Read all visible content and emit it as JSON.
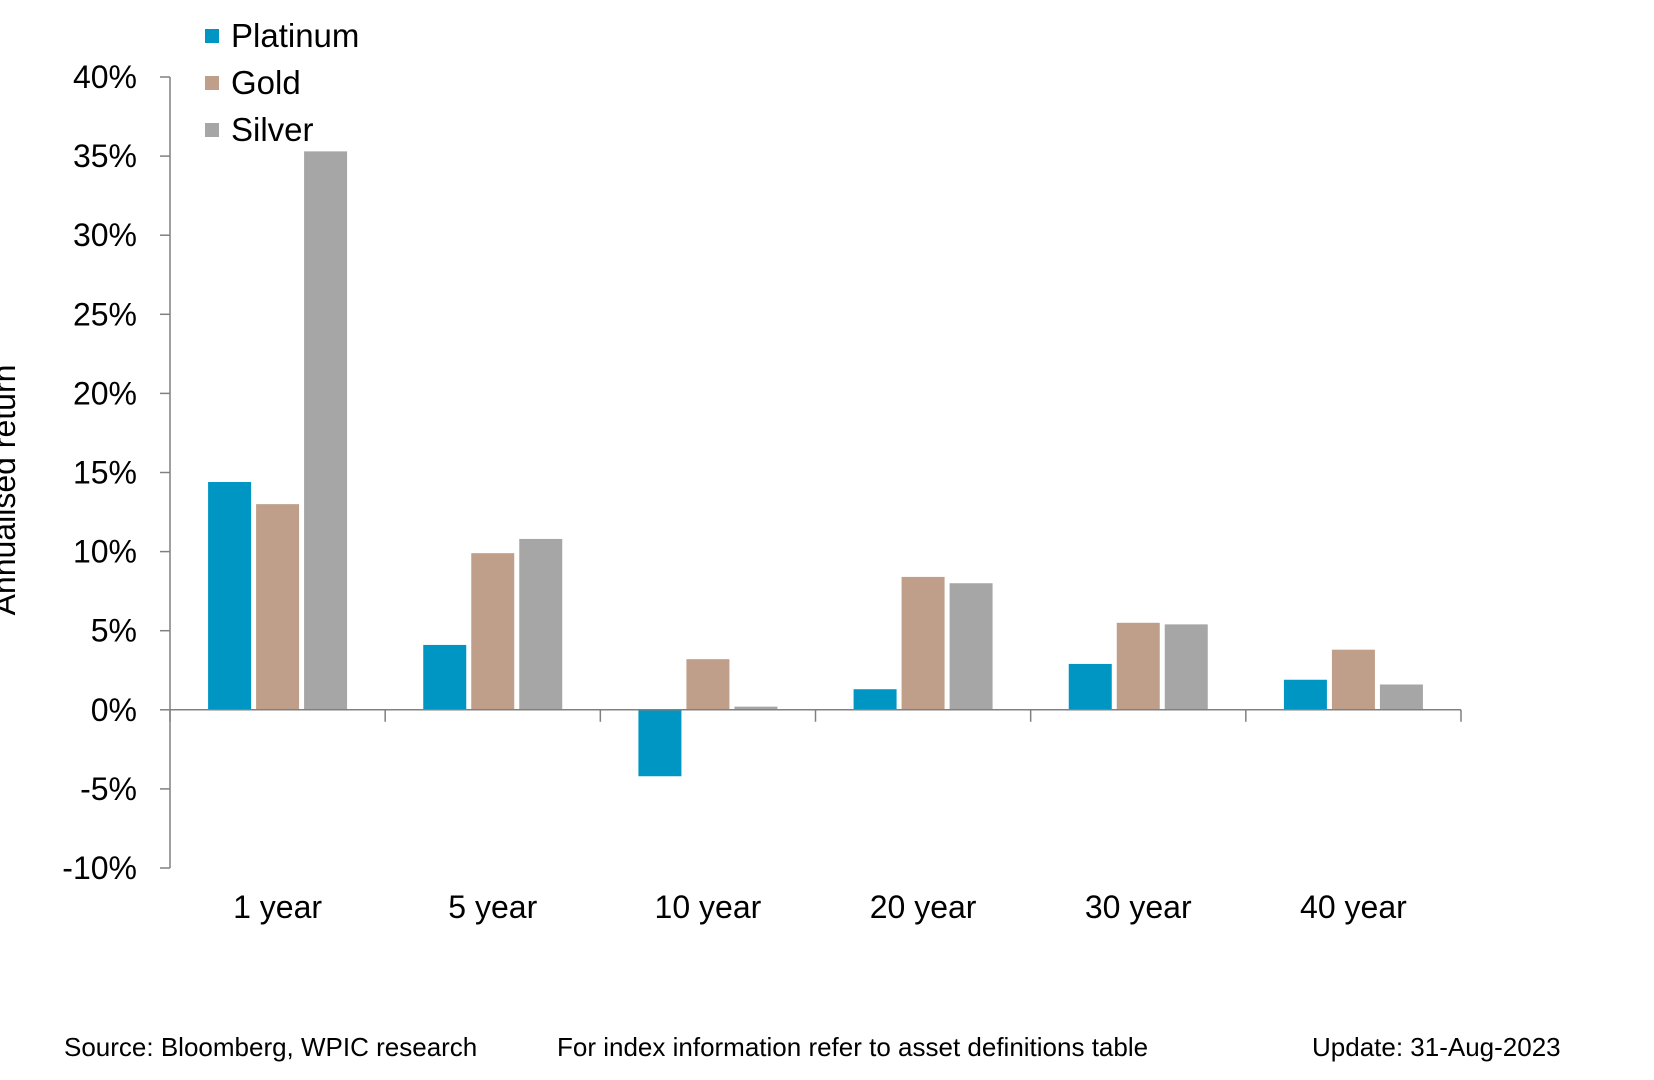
{
  "chart_data": {
    "type": "bar",
    "categories": [
      "1 year",
      "5 year",
      "10 year",
      "20 year",
      "30 year",
      "40 year"
    ],
    "series": [
      {
        "name": "Platinum",
        "color": "#0096C3",
        "values": [
          14.4,
          4.1,
          -4.2,
          1.3,
          2.9,
          1.9
        ]
      },
      {
        "name": "Gold",
        "color": "#BF9F89",
        "values": [
          13.0,
          9.9,
          3.2,
          8.4,
          5.5,
          3.8
        ]
      },
      {
        "name": "Silver",
        "color": "#A6A6A6",
        "values": [
          35.3,
          10.8,
          0.2,
          8.0,
          5.4,
          1.6
        ]
      }
    ],
    "ylabel": "Annualised  return",
    "ylim": [
      -10,
      40
    ],
    "yticks": [
      "40%",
      "35%",
      "30%",
      "25%",
      "20%",
      "15%",
      "10%",
      "5%",
      "0%",
      "-5%",
      "-10%"
    ],
    "ytick_values": [
      40,
      35,
      30,
      25,
      20,
      15,
      10,
      5,
      0,
      -5,
      -10
    ],
    "grid": false,
    "legend_position": "top-left"
  },
  "footer": {
    "source": "Source: Bloomberg, WPIC research",
    "note": "For index information refer to asset definitions table",
    "update": "Update: 31-Aug-2023"
  }
}
